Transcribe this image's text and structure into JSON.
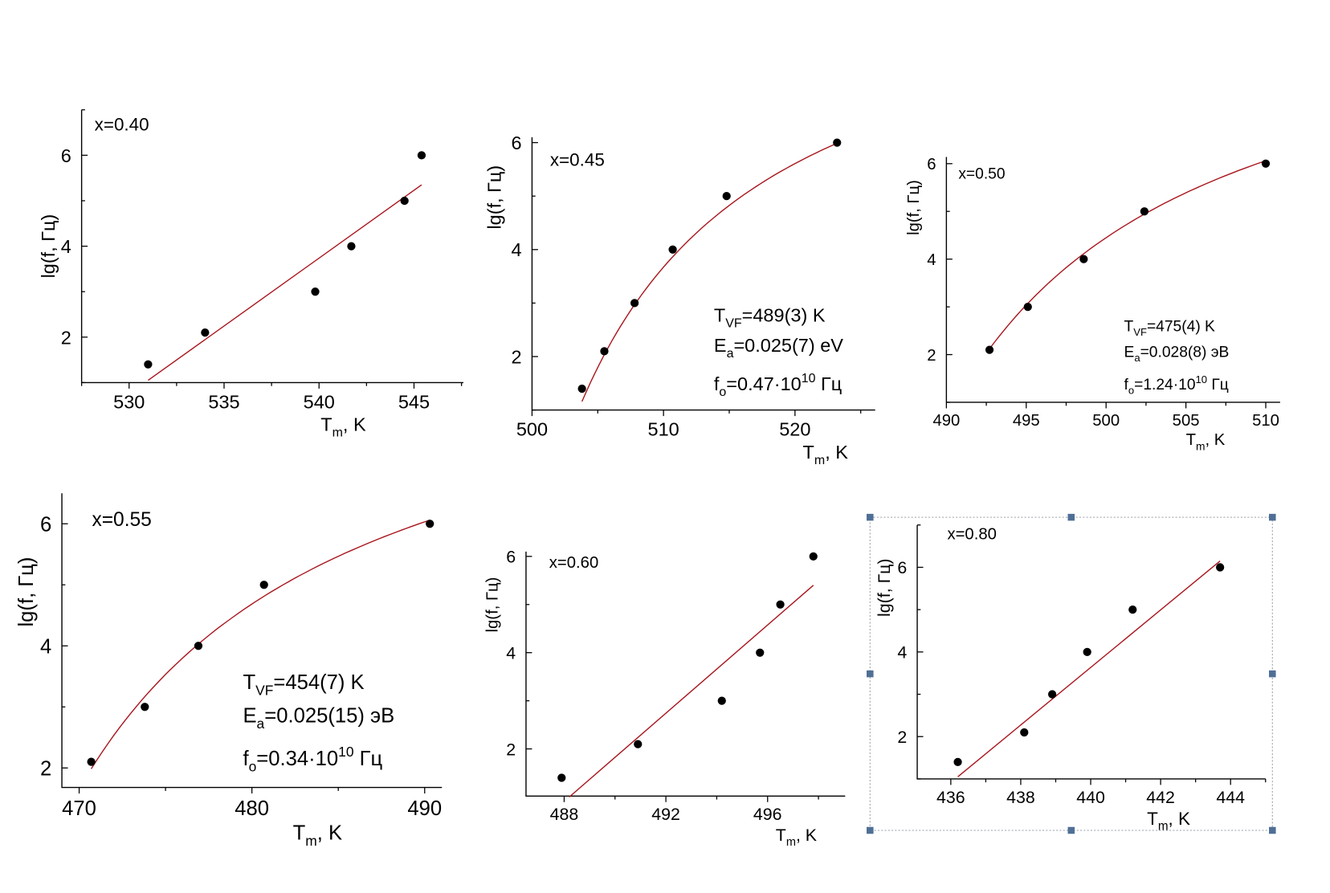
{
  "fit_color": "#a8141c",
  "point_color": "#000000",
  "selection_color": "#4f6f96",
  "chart_data": [
    {
      "type": "scatter",
      "title": "x=0.40",
      "ylabel": "lg(f, Гц)",
      "xlabel": [
        {
          "t": "T"
        },
        {
          "t": "m",
          "sub": true
        },
        {
          "t": ", K"
        }
      ],
      "xlim": [
        527.5,
        547.6
      ],
      "ylim": [
        1,
        7
      ],
      "xticks": [
        530,
        535,
        540,
        545
      ],
      "yticks": [
        2,
        4,
        6
      ],
      "points": [
        [
          531,
          1.4
        ],
        [
          534,
          2.1
        ],
        [
          539.8,
          3
        ],
        [
          541.7,
          4
        ],
        [
          544.5,
          5
        ],
        [
          545.4,
          6
        ]
      ],
      "fit": {
        "kind": "linear",
        "from": [
          531,
          1.05
        ],
        "to": [
          545.4,
          5.35
        ]
      },
      "annotation": []
    },
    {
      "type": "scatter",
      "title": "x=0.45",
      "ylabel": "lg(f, Гц)",
      "xlabel": [
        {
          "t": "T"
        },
        {
          "t": "m",
          "sub": true
        },
        {
          "t": ", K"
        }
      ],
      "xlim": [
        500,
        526.1
      ],
      "ylim": [
        1,
        6.1
      ],
      "xticks": [
        500,
        510,
        520
      ],
      "yticks": [
        2,
        4,
        6
      ],
      "points": [
        [
          503.8,
          1.4
        ],
        [
          505.5,
          2.1
        ],
        [
          507.8,
          3
        ],
        [
          510.7,
          4
        ],
        [
          514.8,
          5
        ],
        [
          523.2,
          6
        ]
      ],
      "fit": {
        "kind": "vogel-fulcher",
        "T_VF": 489,
        "Ea_eV": 0.025,
        "f0_Hz": 4700000000.0,
        "T_range": [
          503.8,
          523.2
        ]
      },
      "annotation": [
        [
          {
            "t": "T"
          },
          {
            "t": "VF",
            "sub": true
          },
          {
            "t": "=489(3) K"
          }
        ],
        [
          {
            "t": "E"
          },
          {
            "t": "a",
            "sub": true
          },
          {
            "t": "=0.025(7) eV"
          }
        ],
        [
          {
            "t": "f"
          },
          {
            "t": "o",
            "sub": true
          },
          {
            "t": "=0.47·10"
          },
          {
            "t": "10",
            "sup": true
          },
          {
            "t": " Гц"
          }
        ]
      ]
    },
    {
      "type": "scatter",
      "title": "x=0.50",
      "ylabel": "lg(f, Гц)",
      "xlabel": [
        {
          "t": "T"
        },
        {
          "t": "m",
          "sub": true
        },
        {
          "t": ", K"
        }
      ],
      "xlim": [
        490,
        510.9
      ],
      "ylim": [
        1,
        6.14
      ],
      "xticks": [
        490,
        495,
        500,
        505,
        510
      ],
      "yticks": [
        2,
        4,
        6
      ],
      "points": [
        [
          492.7,
          2.1
        ],
        [
          495.1,
          3
        ],
        [
          498.6,
          4
        ],
        [
          502.4,
          5
        ],
        [
          510,
          6
        ]
      ],
      "fit": {
        "kind": "vogel-fulcher",
        "T_VF": 475,
        "Ea_eV": 0.028,
        "f0_Hz": 12400000000.0,
        "T_range": [
          492.7,
          510
        ]
      },
      "annotation": [
        [
          {
            "t": "T"
          },
          {
            "t": "VF",
            "sub": true
          },
          {
            "t": "=475(4) K"
          }
        ],
        [
          {
            "t": "E"
          },
          {
            "t": "a",
            "sub": true
          },
          {
            "t": "=0.028(8) эВ"
          }
        ],
        [
          {
            "t": "f"
          },
          {
            "t": "o",
            "sub": true
          },
          {
            "t": "=1.24·10"
          },
          {
            "t": "10",
            "sup": true
          },
          {
            "t": " Гц"
          }
        ]
      ]
    },
    {
      "type": "scatter",
      "title": "x=0.55",
      "ylabel": "lg(f, Гц)",
      "xlabel": [
        {
          "t": "T"
        },
        {
          "t": "m",
          "sub": true
        },
        {
          "t": ", K"
        }
      ],
      "xlim": [
        469,
        491
      ],
      "ylim": [
        1.68,
        6.5
      ],
      "xticks": [
        470,
        480,
        490
      ],
      "yticks": [
        2,
        4,
        6
      ],
      "points": [
        [
          470.7,
          2.1
        ],
        [
          473.8,
          3
        ],
        [
          476.9,
          4
        ],
        [
          480.7,
          5
        ],
        [
          490.3,
          6
        ]
      ],
      "fit": {
        "kind": "vogel-fulcher",
        "T_VF": 454,
        "Ea_eV": 0.025,
        "f0_Hz": 3400000000.0,
        "T_range": [
          470.7,
          490.3
        ]
      },
      "annotation": [
        [
          {
            "t": "T"
          },
          {
            "t": "VF",
            "sub": true
          },
          {
            "t": "=454(7) K"
          }
        ],
        [
          {
            "t": "E"
          },
          {
            "t": "a",
            "sub": true
          },
          {
            "t": "=0.025(15) эВ"
          }
        ],
        [
          {
            "t": "f"
          },
          {
            "t": "o",
            "sub": true
          },
          {
            "t": "=0.34·10"
          },
          {
            "t": "10",
            "sup": true
          },
          {
            "t": " Гц"
          }
        ]
      ]
    },
    {
      "type": "scatter",
      "title": "x=0.60",
      "ylabel": "lg(f, Гц)",
      "xlabel": [
        {
          "t": "T"
        },
        {
          "t": "m",
          "sub": true
        },
        {
          "t": ", K"
        }
      ],
      "xlim": [
        486.5,
        499.05
      ],
      "ylim": [
        1.02,
        6.1
      ],
      "xticks": [
        488,
        492,
        496
      ],
      "yticks": [
        2,
        4,
        6
      ],
      "points": [
        [
          487.9,
          1.4
        ],
        [
          490.9,
          2.1
        ],
        [
          494.2,
          3
        ],
        [
          495.7,
          4
        ],
        [
          496.5,
          5
        ],
        [
          497.8,
          6
        ]
      ],
      "fit": {
        "kind": "linear",
        "from": [
          488.2,
          1.0
        ],
        "to": [
          497.8,
          5.4
        ]
      },
      "annotation": []
    },
    {
      "type": "scatter",
      "title": "x=0.80",
      "ylabel": "lg(f, Гц)",
      "xlabel": [
        {
          "t": "T"
        },
        {
          "t": "m",
          "sub": true
        },
        {
          "t": ", K"
        }
      ],
      "xlim": [
        435.04,
        445
      ],
      "ylim": [
        1,
        7
      ],
      "xticks": [
        436,
        438,
        440,
        442,
        444
      ],
      "yticks": [
        2,
        4,
        6
      ],
      "points": [
        [
          436.2,
          1.4
        ],
        [
          438.1,
          2.1
        ],
        [
          438.9,
          3
        ],
        [
          439.9,
          4
        ],
        [
          441.2,
          5
        ],
        [
          443.7,
          6
        ]
      ],
      "fit": {
        "kind": "linear",
        "from": [
          436.2,
          1.05
        ],
        "to": [
          443.7,
          6.15
        ]
      },
      "annotation": [],
      "selected": true
    }
  ]
}
